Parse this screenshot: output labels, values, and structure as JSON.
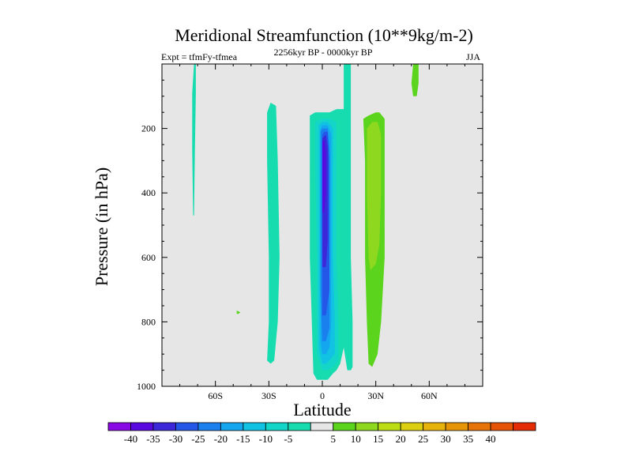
{
  "chart_data": {
    "type": "heatmap",
    "title": "Meridional Streamfunction (10**9kg/m-2)",
    "subtitle": "2256kyr BP - 0000kyr BP",
    "left_label": "Expt = tfmFy-tfmea",
    "right_label": "JJA",
    "xlabel": "Latitude",
    "ylabel": "Pressure (in hPa)",
    "xlim": [
      -90,
      90
    ],
    "ylim": [
      0,
      1000
    ],
    "y_inverted": true,
    "x_ticks": [
      {
        "value": -60,
        "label": "60S"
      },
      {
        "value": -30,
        "label": "30S"
      },
      {
        "value": 0,
        "label": "0"
      },
      {
        "value": 30,
        "label": "30N"
      },
      {
        "value": 60,
        "label": "60N"
      }
    ],
    "y_ticks": [
      {
        "value": 200,
        "label": "200"
      },
      {
        "value": 400,
        "label": "400"
      },
      {
        "value": 600,
        "label": "600"
      },
      {
        "value": 800,
        "label": "800"
      },
      {
        "value": 1000,
        "label": "1000"
      }
    ],
    "background_color": "#e6e6e6",
    "colorbar": {
      "colors": [
        "#8a0ae6",
        "#5a08e0",
        "#3c28d8",
        "#2456e8",
        "#1a80ee",
        "#14a6ee",
        "#12c2e2",
        "#14d6c8",
        "#16dcb0",
        "#e6e6e6",
        "#5ad41c",
        "#8ed820",
        "#bcdc14",
        "#dcce10",
        "#e6b20c",
        "#e69408",
        "#e67408",
        "#e65408",
        "#e42c06"
      ],
      "labels": [
        "-40",
        "-35",
        "-30",
        "-25",
        "-20",
        "-15",
        "-10",
        "-5",
        "5",
        "10",
        "15",
        "20",
        "25",
        "30",
        "35",
        "40"
      ]
    },
    "regions": [
      {
        "name": "thin-high-lat-south",
        "level": -5,
        "points": [
          [
            -72,
            0
          ],
          [
            -71,
            0
          ],
          [
            -71,
            90
          ],
          [
            -71.5,
            270
          ],
          [
            -72,
            470
          ],
          [
            -72.5,
            470
          ],
          [
            -73,
            270
          ],
          [
            -73,
            90
          ]
        ]
      },
      {
        "name": "south-subtropical-cell",
        "level": -5,
        "points": [
          [
            -29,
            120
          ],
          [
            -26,
            130
          ],
          [
            -25,
            300
          ],
          [
            -24,
            600
          ],
          [
            -25,
            800
          ],
          [
            -27,
            920
          ],
          [
            -29,
            930
          ],
          [
            -31,
            920
          ],
          [
            -30,
            800
          ],
          [
            -30,
            600
          ],
          [
            -31,
            300
          ],
          [
            -31,
            150
          ]
        ]
      },
      {
        "name": "hadley-outer",
        "level": -5,
        "points": [
          [
            -7,
            160
          ],
          [
            -4,
            150
          ],
          [
            0,
            150
          ],
          [
            4,
            150
          ],
          [
            8,
            140
          ],
          [
            12,
            140
          ],
          [
            12,
            0
          ],
          [
            16,
            0
          ],
          [
            16,
            60
          ],
          [
            16,
            300
          ],
          [
            16,
            600
          ],
          [
            17,
            800
          ],
          [
            17,
            940
          ],
          [
            16,
            950
          ],
          [
            14,
            950
          ],
          [
            12,
            880
          ],
          [
            10,
            930
          ],
          [
            8,
            950
          ],
          [
            6,
            960
          ],
          [
            3,
            980
          ],
          [
            0,
            980
          ],
          [
            -3,
            980
          ],
          [
            -5,
            960
          ],
          [
            -7,
            600
          ],
          [
            -7,
            300
          ]
        ]
      },
      {
        "name": "hadley-l10",
        "level": -10,
        "points": [
          [
            -4,
            180
          ],
          [
            0,
            170
          ],
          [
            4,
            170
          ],
          [
            8,
            180
          ],
          [
            8,
            300
          ],
          [
            8,
            600
          ],
          [
            9,
            800
          ],
          [
            9,
            920
          ],
          [
            6,
            940
          ],
          [
            3,
            950
          ],
          [
            0,
            950
          ],
          [
            -3,
            900
          ],
          [
            -3,
            600
          ],
          [
            -4,
            300
          ]
        ]
      },
      {
        "name": "hadley-l15",
        "level": -15,
        "points": [
          [
            -2,
            190
          ],
          [
            0,
            180
          ],
          [
            3,
            180
          ],
          [
            6,
            200
          ],
          [
            6,
            400
          ],
          [
            6,
            600
          ],
          [
            7,
            800
          ],
          [
            7,
            900
          ],
          [
            4,
            920
          ],
          [
            2,
            930
          ],
          [
            0,
            930
          ],
          [
            -2,
            880
          ],
          [
            -2,
            700
          ],
          [
            -2,
            500
          ],
          [
            -2,
            300
          ]
        ]
      },
      {
        "name": "hadley-l20",
        "level": -20,
        "points": [
          [
            -1,
            200
          ],
          [
            0,
            190
          ],
          [
            3,
            190
          ],
          [
            5,
            220
          ],
          [
            5,
            400
          ],
          [
            5,
            600
          ],
          [
            5,
            800
          ],
          [
            4,
            880
          ],
          [
            2,
            900
          ],
          [
            0,
            900
          ],
          [
            -1,
            860
          ],
          [
            -1,
            700
          ],
          [
            -1,
            500
          ],
          [
            -1,
            300
          ]
        ]
      },
      {
        "name": "hadley-l25",
        "level": -25,
        "points": [
          [
            -1,
            210
          ],
          [
            0,
            200
          ],
          [
            3,
            200
          ],
          [
            4,
            260
          ],
          [
            4,
            400
          ],
          [
            4,
            600
          ],
          [
            4,
            820
          ],
          [
            2,
            860
          ],
          [
            0,
            860
          ],
          [
            -1,
            700
          ],
          [
            -1,
            500
          ],
          [
            -1,
            300
          ]
        ]
      },
      {
        "name": "hadley-l30",
        "level": -30,
        "points": [
          [
            0,
            220
          ],
          [
            1,
            210
          ],
          [
            3,
            210
          ],
          [
            4,
            300
          ],
          [
            4,
            500
          ],
          [
            4,
            700
          ],
          [
            2,
            780
          ],
          [
            0,
            780
          ],
          [
            0,
            600
          ],
          [
            0,
            400
          ]
        ]
      },
      {
        "name": "hadley-l35",
        "level": -35,
        "points": [
          [
            0,
            230
          ],
          [
            2,
            220
          ],
          [
            3,
            260
          ],
          [
            3,
            400
          ],
          [
            3,
            550
          ],
          [
            2,
            630
          ],
          [
            0,
            630
          ],
          [
            0,
            500
          ]
        ]
      },
      {
        "name": "hadley-l40",
        "level": -40,
        "points": [
          [
            0,
            240
          ],
          [
            1,
            235
          ],
          [
            2,
            280
          ],
          [
            2,
            400
          ],
          [
            1,
            460
          ],
          [
            0,
            460
          ]
        ]
      },
      {
        "name": "north-subtropical-positive",
        "level": 5,
        "points": [
          [
            23,
            170
          ],
          [
            26,
            160
          ],
          [
            30,
            150
          ],
          [
            32,
            150
          ],
          [
            35,
            170
          ],
          [
            35,
            300
          ],
          [
            35,
            600
          ],
          [
            33,
            800
          ],
          [
            31,
            900
          ],
          [
            28,
            940
          ],
          [
            26,
            930
          ],
          [
            25,
            800
          ],
          [
            24,
            600
          ],
          [
            24,
            300
          ]
        ]
      },
      {
        "name": "north-subtropical-positive-l10",
        "level": 10,
        "points": [
          [
            25,
            200
          ],
          [
            28,
            180
          ],
          [
            31,
            180
          ],
          [
            33,
            220
          ],
          [
            33,
            400
          ],
          [
            32,
            560
          ],
          [
            30,
            620
          ],
          [
            27,
            640
          ],
          [
            26,
            600
          ],
          [
            25,
            400
          ]
        ]
      },
      {
        "name": "high-lat-north",
        "level": 5,
        "points": [
          [
            51,
            0
          ],
          [
            54,
            0
          ],
          [
            54,
            60
          ],
          [
            53,
            100
          ],
          [
            51,
            100
          ],
          [
            50,
            60
          ]
        ]
      },
      {
        "name": "tiny-south-patch",
        "level": 5,
        "points": [
          [
            -48,
            765
          ],
          [
            -46,
            770
          ],
          [
            -47,
            775
          ],
          [
            -48,
            775
          ]
        ]
      }
    ]
  }
}
